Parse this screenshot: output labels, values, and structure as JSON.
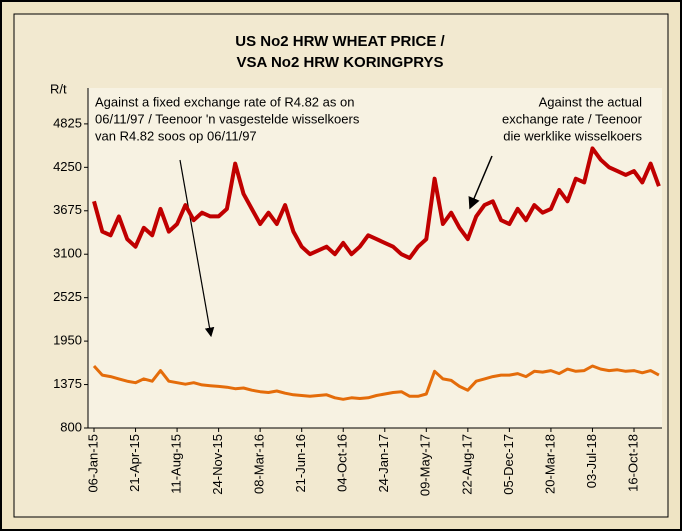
{
  "chart_data": {
    "type": "line",
    "title": [
      "US No2 HRW WHEAT PRICE /",
      "VSA No2 HRW KORINGPRYS"
    ],
    "y_label": "R/t",
    "annotations": [
      {
        "lines": [
          "Against a fixed  exchange rate of R4.82 as on",
          "06/11/97 / Teenoor 'n vasgestelde wisselkoers",
          "van R4.82 soos op 06/11/97"
        ]
      },
      {
        "lines": [
          "Against the actual",
          "exchange rate / Teenoor",
          "die werklike wisselkoers"
        ]
      }
    ],
    "categories": [
      "06-Jan-15",
      null,
      null,
      null,
      null,
      "21-Apr-15",
      null,
      null,
      null,
      null,
      "11-Aug-15",
      null,
      null,
      null,
      null,
      "24-Nov-15",
      null,
      null,
      null,
      null,
      "08-Mar-16",
      null,
      null,
      null,
      null,
      "21-Jun-16",
      null,
      null,
      null,
      null,
      "04-Oct-16",
      null,
      null,
      null,
      null,
      "24-Jan-17",
      null,
      null,
      null,
      null,
      "09-May-17",
      null,
      null,
      null,
      null,
      "22-Aug-17",
      null,
      null,
      null,
      null,
      "05-Dec-17",
      null,
      null,
      null,
      null,
      "20-Mar-18",
      null,
      null,
      null,
      null,
      "03-Jul-18",
      null,
      null,
      null,
      null,
      "16-Oct-18",
      null,
      null,
      null
    ],
    "series": [
      {
        "color": "#c00000",
        "values": [
          3800,
          3400,
          3350,
          3600,
          3300,
          3200,
          3450,
          3350,
          3700,
          3400,
          3500,
          3750,
          3550,
          3650,
          3600,
          3600,
          3700,
          4300,
          3900,
          3700,
          3500,
          3650,
          3500,
          3750,
          3400,
          3200,
          3100,
          3150,
          3200,
          3100,
          3250,
          3100,
          3200,
          3350,
          3300,
          3250,
          3200,
          3100,
          3050,
          3200,
          3300,
          4100,
          3500,
          3650,
          3450,
          3300,
          3600,
          3750,
          3800,
          3550,
          3500,
          3700,
          3550,
          3750,
          3650,
          3700,
          3950,
          3800,
          4100,
          4050,
          4500,
          4350,
          4250,
          4200,
          4150,
          4200,
          4050,
          4300,
          4000
        ]
      },
      {
        "color": "#e46c0a",
        "values": [
          1620,
          1500,
          1480,
          1450,
          1420,
          1400,
          1450,
          1420,
          1560,
          1420,
          1400,
          1380,
          1400,
          1370,
          1360,
          1350,
          1340,
          1320,
          1330,
          1300,
          1280,
          1270,
          1290,
          1260,
          1240,
          1230,
          1220,
          1230,
          1240,
          1200,
          1180,
          1200,
          1190,
          1200,
          1230,
          1250,
          1270,
          1280,
          1220,
          1220,
          1250,
          1550,
          1450,
          1430,
          1350,
          1300,
          1420,
          1450,
          1480,
          1500,
          1500,
          1520,
          1480,
          1550,
          1540,
          1560,
          1520,
          1580,
          1550,
          1560,
          1620,
          1580,
          1560,
          1570,
          1550,
          1560,
          1530,
          1560,
          1500
        ]
      }
    ],
    "ylim": [
      800,
      5300
    ],
    "yticks": [
      800,
      1375,
      1950,
      2525,
      3100,
      3675,
      4250,
      4825
    ]
  }
}
